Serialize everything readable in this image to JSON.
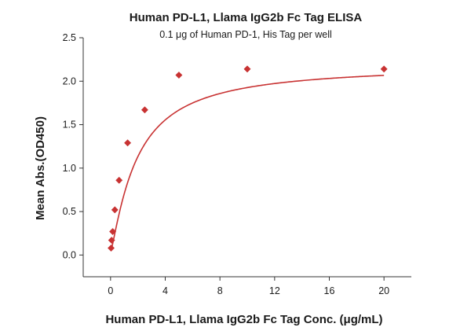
{
  "chart_data": {
    "type": "scatter",
    "title": "Human PD-L1, Llama IgG2b Fc Tag ELISA",
    "subtitle": "0.1 μg of Human PD-1, His Tag per well",
    "xlabel": "Human PD-L1, Llama IgG2b Fc Tag Conc. (μg/mL)",
    "ylabel": "Mean Abs.(OD450)",
    "xlim": [
      -2,
      22
    ],
    "ylim": [
      -0.25,
      2.5
    ],
    "x_ticks": [
      0,
      4,
      8,
      12,
      16,
      20
    ],
    "y_ticks": [
      0.0,
      0.5,
      1.0,
      1.5,
      2.0,
      2.5
    ],
    "x_tick_labels": [
      "0",
      "4",
      "8",
      "12",
      "16",
      "20"
    ],
    "y_tick_labels": [
      "0.0",
      "0.5",
      "1.0",
      "1.5",
      "2.0",
      "2.5"
    ],
    "grid": false,
    "legend": "none",
    "marker": "diamond",
    "color": "#c83232",
    "x": [
      0.039,
      0.078,
      0.156,
      0.313,
      0.625,
      1.25,
      2.5,
      5,
      10,
      20
    ],
    "y": [
      0.08,
      0.17,
      0.27,
      0.52,
      0.86,
      1.29,
      1.67,
      2.07,
      2.14,
      2.14
    ],
    "fit": {
      "type": "hill",
      "bottom": 0.03,
      "top": 2.19,
      "ec50": 1.93,
      "hill_slope": 1.2
    }
  }
}
